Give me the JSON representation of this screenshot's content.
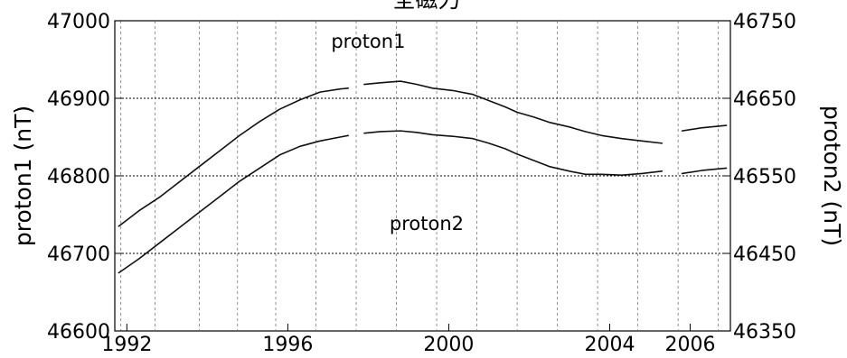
{
  "chart_data": {
    "type": "line",
    "title": "全磁力",
    "ylabel_left": "proton1 (nT)",
    "ylabel_right": "proton2 (nT)",
    "ylim_left": [
      46600,
      47000
    ],
    "ylim_right": [
      46350,
      46750
    ],
    "yticks_left": [
      46600,
      46700,
      46800,
      46900,
      47000
    ],
    "yticks_right": [
      46350,
      46450,
      46550,
      46650,
      46750
    ],
    "xlim": [
      1991.7,
      2007.0
    ],
    "xticks": [
      1992,
      1996,
      2000,
      2004,
      2006
    ],
    "xtick_labels": [
      "1992",
      "1996",
      "2000",
      "2004",
      "2006"
    ],
    "vgrid_years": [
      1991.85,
      1992.7,
      1993.8,
      1994.75,
      1995.7,
      1996.7,
      1997.7,
      1998.7,
      1999.7,
      2000.7,
      2001.7,
      2002.7,
      2003.7,
      2004.7,
      2005.7,
      2006.7
    ],
    "dotted_hgrid_left": [
      46700,
      46800,
      46900
    ],
    "annotations": [
      {
        "text": "proton1",
        "x": 1998.0,
        "y": 46965
      },
      {
        "text": "proton2",
        "x": 1999.45,
        "y": 46730
      }
    ],
    "series": [
      {
        "name": "proton1",
        "axis": "left",
        "x": [
          1991.8,
          1992.3,
          1992.8,
          1993.3,
          1993.8,
          1994.3,
          1994.8,
          1995.3,
          1995.8,
          1996.3,
          1996.8,
          1997.3,
          1997.5,
          null,
          1997.9,
          1998.3,
          1998.8,
          1999.2,
          1999.6,
          2000.1,
          2000.6,
          2001.0,
          2001.4,
          2001.7,
          2002.1,
          2002.5,
          2003.0,
          2003.4,
          2003.8,
          2004.3,
          2004.8,
          2005.3,
          null,
          2005.8,
          2006.3,
          2006.9
        ],
        "y": [
          46735,
          46755,
          46772,
          46792,
          46812,
          46832,
          46852,
          46870,
          46886,
          46898,
          46908,
          46912,
          46913,
          null,
          46918,
          46920,
          46922,
          46918,
          46913,
          46910,
          46905,
          46897,
          46889,
          46882,
          46876,
          46869,
          46863,
          46857,
          46852,
          46848,
          46845,
          46842,
          null,
          46858,
          46862,
          46865
        ]
      },
      {
        "name": "proton2",
        "axis": "right",
        "x": [
          1991.8,
          1992.3,
          1992.8,
          1993.3,
          1993.8,
          1994.3,
          1994.8,
          1995.3,
          1995.8,
          1996.3,
          1996.8,
          1997.3,
          1997.5,
          null,
          1997.9,
          1998.3,
          1998.8,
          1999.2,
          1999.6,
          2000.1,
          2000.6,
          2001.0,
          2001.4,
          2001.7,
          2002.1,
          2002.5,
          2003.0,
          2003.4,
          2003.8,
          2004.3,
          2004.8,
          2005.3,
          null,
          2005.8,
          2006.3,
          2006.9
        ],
        "y": [
          46425,
          46443,
          46463,
          46483,
          46503,
          46523,
          46543,
          46560,
          46577,
          46588,
          46595,
          46600,
          46602,
          null,
          46605,
          46607,
          46608,
          46606,
          46603,
          46601,
          46598,
          46592,
          46585,
          46578,
          46570,
          46562,
          46556,
          46552,
          46552,
          46551,
          46553,
          46556,
          null,
          46553,
          46557,
          46560
        ]
      }
    ]
  }
}
